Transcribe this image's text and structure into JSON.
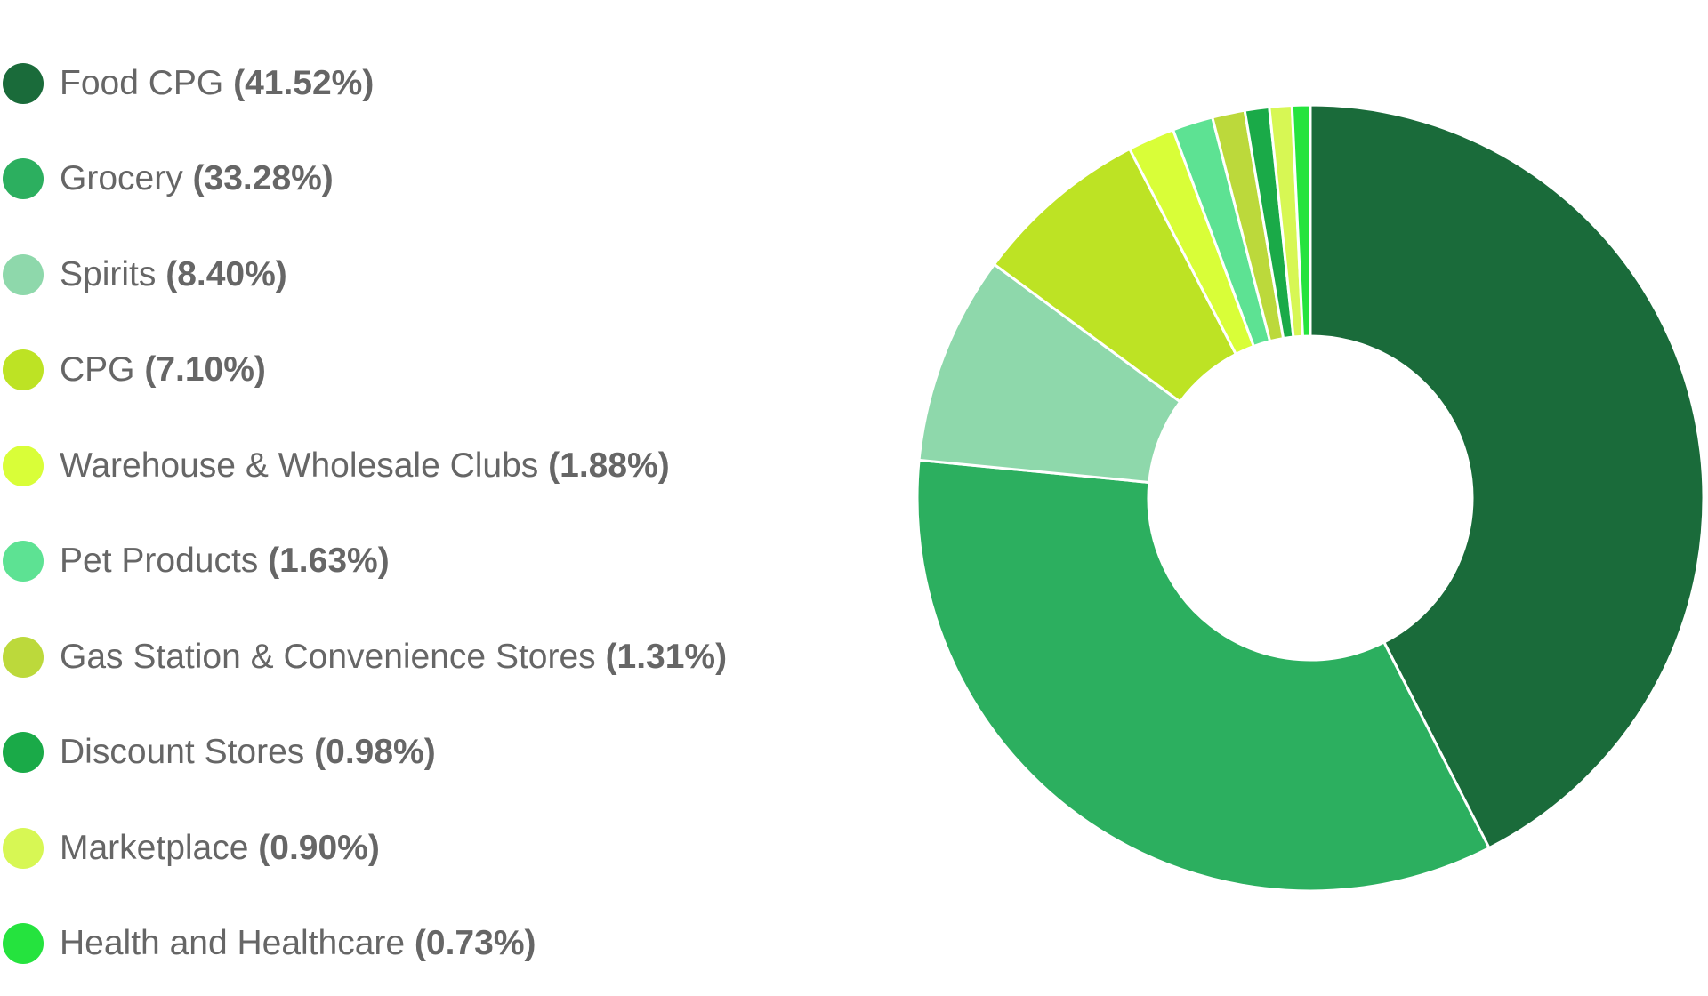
{
  "chart_data": {
    "type": "pie",
    "donut": true,
    "legend_position": "left",
    "slices": [
      {
        "label": "Food CPG",
        "value": 41.52,
        "value_label": "(41.52%)",
        "color": "#1a6b3a"
      },
      {
        "label": "Grocery",
        "value": 33.28,
        "value_label": "(33.28%)",
        "color": "#2caf5f"
      },
      {
        "label": "Spirits",
        "value": 8.4,
        "value_label": "(8.40%)",
        "color": "#8ed8ab"
      },
      {
        "label": "CPG",
        "value": 7.1,
        "value_label": "(7.10%)",
        "color": "#bde324"
      },
      {
        "label": "Warehouse & Wholesale Clubs",
        "value": 1.88,
        "value_label": "(1.88%)",
        "color": "#d9fe38"
      },
      {
        "label": "Pet Products",
        "value": 1.63,
        "value_label": "(1.63%)",
        "color": "#5de293"
      },
      {
        "label": "Gas Station & Convenience Stores",
        "value": 1.31,
        "value_label": "(1.31%)",
        "color": "#bcd93b"
      },
      {
        "label": "Discount Stores",
        "value": 0.98,
        "value_label": "(0.98%)",
        "color": "#1aaa48"
      },
      {
        "label": "Marketplace",
        "value": 0.9,
        "value_label": "(0.90%)",
        "color": "#d7f754"
      },
      {
        "label": "Health and Healthcare",
        "value": 0.73,
        "value_label": "(0.73%)",
        "color": "#25e33e"
      }
    ]
  }
}
